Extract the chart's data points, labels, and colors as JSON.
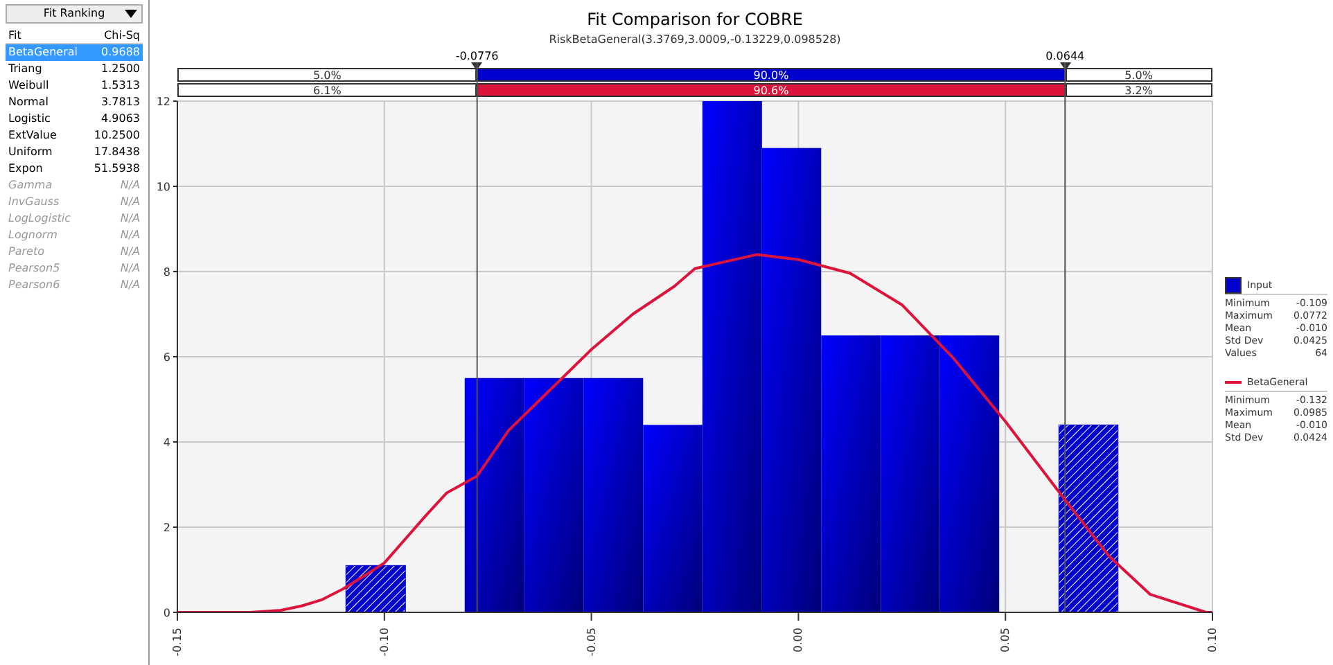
{
  "chart_data": [
    {
      "type": "other",
      "title": "Fit Ranking",
      "xlabel": "Fit",
      "ylabel": "Chi-Sq",
      "categories": [
        "BetaGeneral",
        "Triang",
        "Weibull",
        "Normal",
        "Logistic",
        "ExtValue",
        "Uniform",
        "Expon",
        "Gamma",
        "InvGauss",
        "LogLogistic",
        "Lognorm",
        "Pareto",
        "Pearson5",
        "Pearson6"
      ],
      "value_labels": [
        "0.9688",
        "1.2500",
        "1.5313",
        "3.7813",
        "4.9063",
        "10.2500",
        "17.8438",
        "51.5938",
        "N/A",
        "N/A",
        "N/A",
        "N/A",
        "N/A",
        "N/A",
        "N/A"
      ]
    },
    {
      "type": "histogram",
      "title": "Fit Comparison for COBRE",
      "subtitle": "RiskBetaGeneral(3.3769,3.0009,-0.13229,0.098528)",
      "xlim": [
        -0.15,
        0.1
      ],
      "xticks": [
        {
          "value": -0.15,
          "label": "-0.15"
        },
        {
          "value": -0.1,
          "label": "-0.10"
        },
        {
          "value": -0.05,
          "label": "-0.05"
        },
        {
          "value": 0,
          "label": "0.00"
        },
        {
          "value": 0.05,
          "label": "0.05"
        },
        {
          "value": 0.1,
          "label": "0.10"
        }
      ],
      "ylim": [
        0,
        12
      ],
      "yticks": [
        0,
        2,
        4,
        6,
        8,
        10,
        12
      ],
      "grid": true,
      "legend": "right",
      "series": [
        {
          "name": "Input",
          "type": "histogram",
          "color": "#0000cc",
          "bins": [
            -0.1093,
            -0.0949,
            -0.0806,
            -0.0662,
            -0.0519,
            -0.0375,
            -0.0232,
            -0.0088,
            0.0055,
            0.0199,
            0.0342,
            0.0485,
            0.0629,
            0.0772
          ],
          "values": [
            1.1,
            0,
            5.5,
            5.5,
            5.5,
            4.4,
            12.0,
            10.9,
            6.5,
            6.5,
            6.5,
            0,
            4.4
          ]
        },
        {
          "name": "BetaGeneral",
          "type": "line",
          "color": "#dc143c",
          "x": [
            -0.15,
            -0.1323,
            -0.125,
            -0.12,
            -0.115,
            -0.11,
            -0.105,
            -0.1,
            -0.09,
            -0.085,
            -0.0776,
            -0.07,
            -0.06,
            -0.05,
            -0.04,
            -0.03,
            -0.025,
            -0.01,
            0,
            0.0125,
            0.025,
            0.0375,
            0.05,
            0.0644,
            0.075,
            0.085,
            0.0985,
            0.1
          ],
          "values": [
            0,
            0,
            0.05,
            0.15,
            0.3,
            0.55,
            0.85,
            1.16,
            2.27,
            2.8,
            3.2,
            4.27,
            5.22,
            6.17,
            7.0,
            7.65,
            8.07,
            8.4,
            8.28,
            7.96,
            7.22,
            5.96,
            4.48,
            2.64,
            1.32,
            0.42,
            0,
            0
          ]
        }
      ],
      "ref_lines": [
        {
          "axis": "x",
          "value": -0.0776,
          "label": "-0.0776",
          "color": "#555555"
        },
        {
          "axis": "x",
          "value": 0.0644,
          "label": "0.0644",
          "color": "#555555"
        }
      ],
      "annotations": [
        "5.0%",
        "90.0%",
        "5.0%",
        "6.1%",
        "90.6%",
        "3.2%",
        "Minimum -0.109",
        "Maximum 0.0772",
        "Mean -0.010",
        "Std Dev 0.0425",
        "Values 64",
        "Minimum -0.132",
        "Maximum 0.0985",
        "Mean -0.010",
        "Std Dev 0.0424"
      ]
    }
  ]
}
